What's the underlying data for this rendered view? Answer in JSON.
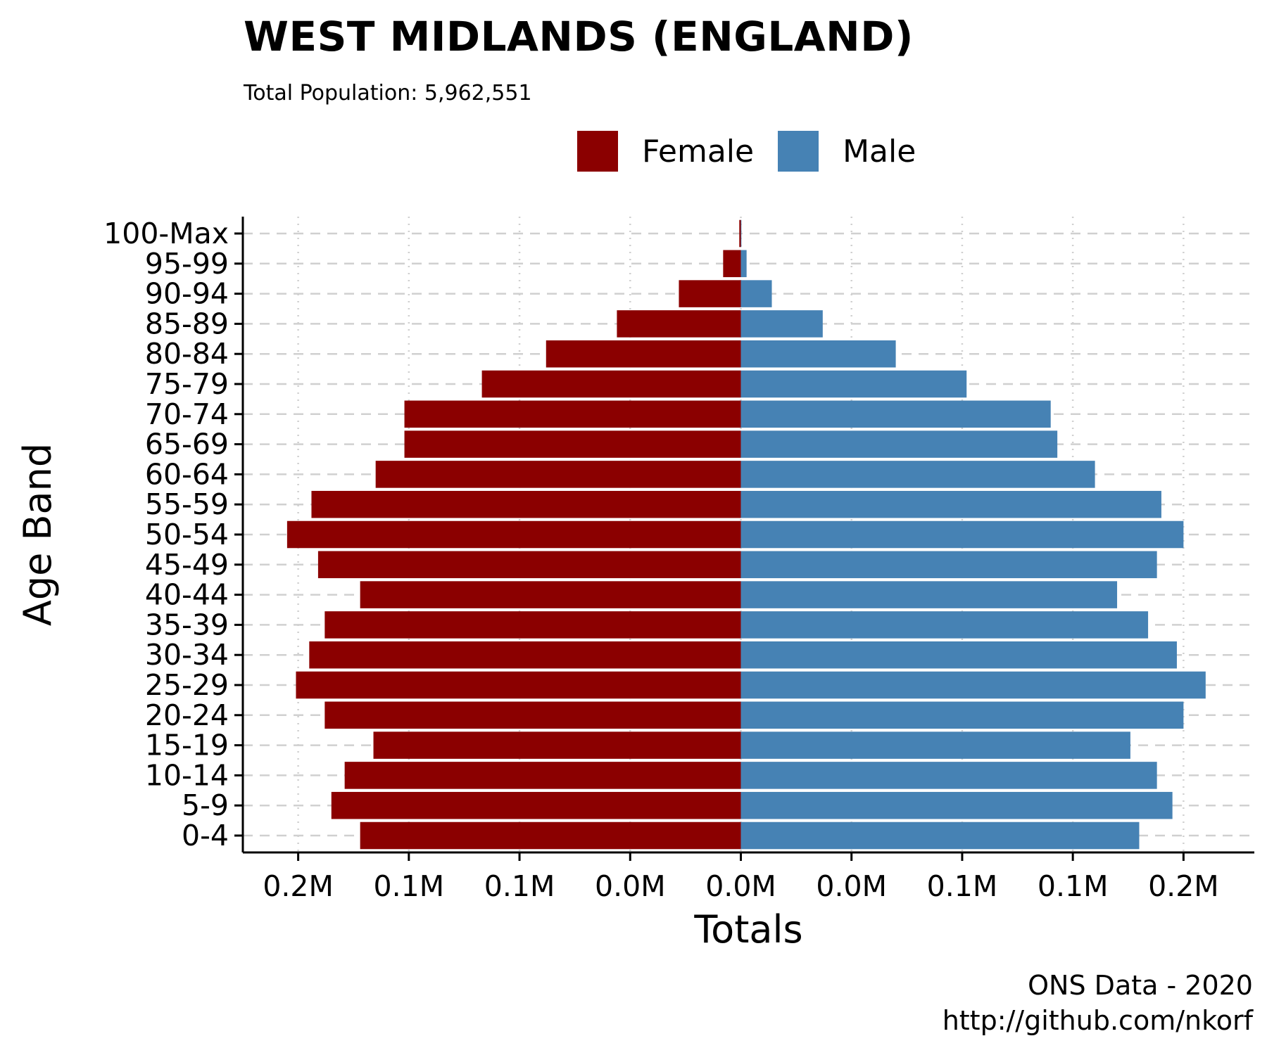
{
  "title": "WEST MIDLANDS (ENGLAND)",
  "subtitle": "Total Population:  5,962,551",
  "caption_lines": [
    "ONS Data - 2020",
    "http://github.com/nkorf"
  ],
  "colors": {
    "female": "#8b0000",
    "male": "#4682b4"
  },
  "chart_data": {
    "type": "bar",
    "orientation": "horizontal",
    "layout": "population-pyramid",
    "title": "WEST MIDLANDS (ENGLAND)",
    "subtitle": "Total Population:  5,962,551",
    "xlabel": "Totals",
    "ylabel": "Age Band",
    "x_tick_values": [
      -200000,
      -150000,
      -100000,
      -50000,
      0,
      50000,
      100000,
      150000,
      200000
    ],
    "x_tick_labels": [
      "0.2M",
      "0.1M",
      "0.1M",
      "0.0M",
      "0.0M",
      "0.0M",
      "0.1M",
      "0.1M",
      "0.2M"
    ],
    "xlim": [
      -225000,
      232000
    ],
    "grid": "dashed",
    "legend_position": "top",
    "categories": [
      "0-4",
      "5-9",
      "10-14",
      "15-19",
      "20-24",
      "25-29",
      "30-34",
      "35-39",
      "40-44",
      "45-49",
      "50-54",
      "55-59",
      "60-64",
      "65-69",
      "70-74",
      "75-79",
      "80-84",
      "85-89",
      "90-94",
      "95-99",
      "100-Max"
    ],
    "series": [
      {
        "name": "Female",
        "color": "#8b0000",
        "values": [
          172000,
          185000,
          179000,
          166000,
          188000,
          201000,
          195000,
          188000,
          172000,
          191000,
          205000,
          194000,
          165000,
          152000,
          152000,
          117000,
          88000,
          56000,
          28000,
          8000,
          700
        ]
      },
      {
        "name": "Male",
        "color": "#4682b4",
        "values": [
          180000,
          195000,
          188000,
          176000,
          200000,
          210000,
          197000,
          184000,
          170000,
          188000,
          200000,
          190000,
          160000,
          143000,
          140000,
          102000,
          70000,
          37000,
          14000,
          2600,
          250
        ]
      }
    ]
  }
}
